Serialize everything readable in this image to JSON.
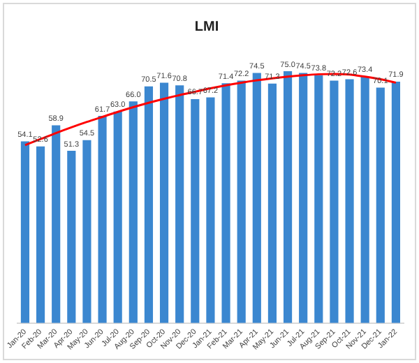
{
  "chart_data": {
    "type": "bar",
    "title": "LMI",
    "categories": [
      "Jan-20",
      "Feb-20",
      "Mar-20",
      "Apr-20",
      "May-20",
      "Jun-20",
      "Jul-20",
      "Aug-20",
      "Sep-20",
      "Oct-20",
      "Nov-20",
      "Dec-20",
      "Jan-21",
      "Feb-21",
      "Mar-21",
      "Apr-21",
      "May-21",
      "Jun-21",
      "Jul-21",
      "Aug-21",
      "Sep-21",
      "Oct-21",
      "Nov-21",
      "Dec-21",
      "Jan-22"
    ],
    "series": [
      {
        "color": "#3b87d0",
        "values": [
          54.1,
          52.6,
          58.9,
          51.3,
          54.5,
          61.7,
          63.0,
          66.0,
          70.5,
          71.6,
          70.8,
          66.7,
          67.2,
          71.4,
          72.2,
          74.5,
          71.3,
          75.0,
          74.5,
          73.8,
          72.2,
          72.6,
          73.4,
          70.1,
          71.9
        ],
        "value_labels": [
          "54.1",
          "52.6",
          "58.9",
          "51.3",
          "54.5",
          "61.7",
          "63.0",
          "66.0",
          "70.5",
          "71.6",
          "70.8",
          "66.7",
          "67.2",
          "71.4",
          "72.2",
          "74.5",
          "71.3",
          "75.0",
          "74.5",
          "73.8",
          "72.2",
          "72.6",
          "73.4",
          "70.1",
          "71.9"
        ]
      },
      {
        "type": "line",
        "color": "#ff0000",
        "x": [
          "Jan-20",
          "Feb-20",
          "Mar-20",
          "Apr-20",
          "May-20",
          "Jun-20",
          "Jul-20",
          "Aug-20",
          "Sep-20",
          "Oct-20",
          "Nov-20",
          "Dec-20",
          "Jan-21",
          "Feb-21",
          "Mar-21",
          "Apr-21",
          "May-21",
          "Jun-21",
          "Jul-21",
          "Aug-21",
          "Sep-21",
          "Oct-21",
          "Nov-21",
          "Dec-21",
          "Jan-22"
        ],
        "values": [
          53.0,
          54.8,
          56.6,
          58.3,
          59.9,
          61.4,
          62.9,
          64.3,
          65.6,
          66.8,
          67.9,
          68.9,
          69.9,
          70.8,
          71.6,
          72.3,
          72.9,
          73.4,
          73.8,
          74.1,
          74.2,
          74.0,
          73.4,
          72.6,
          71.6
        ]
      }
    ],
    "grid": false,
    "legend": false,
    "marker": "none",
    "tick_labels": "x"
  }
}
